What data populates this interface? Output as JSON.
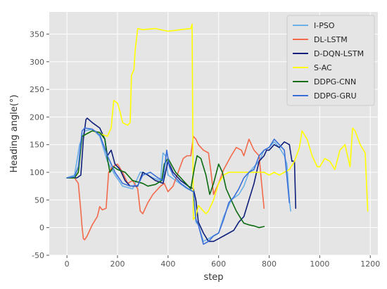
{
  "chart_data": {
    "type": "line",
    "title": "",
    "xlabel": "step",
    "ylabel": "Heading angle(°)",
    "xlim": [
      -70,
      1230
    ],
    "ylim": [
      -50,
      390
    ],
    "xticks": [
      0,
      200,
      400,
      600,
      800,
      1000,
      1200
    ],
    "yticks": [
      -50,
      0,
      50,
      100,
      150,
      200,
      250,
      300,
      350
    ],
    "grid": true,
    "legend_position": "top-right",
    "series": [
      {
        "name": "I-PSO",
        "color": "#6cb0e8",
        "x": [
          0,
          30,
          50,
          70,
          100,
          130,
          160,
          190,
          220,
          260,
          290,
          310,
          340,
          370,
          380,
          390,
          400,
          440,
          470,
          500,
          510,
          520,
          540,
          560,
          580,
          600,
          620,
          650,
          680,
          700,
          720,
          740,
          760,
          780,
          800,
          820,
          840,
          860,
          870,
          880,
          885
        ],
        "y": [
          90,
          95,
          150,
          175,
          178,
          165,
          120,
          95,
          75,
          70,
          100,
          98,
          90,
          85,
          135,
          130,
          95,
          82,
          72,
          65,
          10,
          5,
          -25,
          -20,
          -15,
          -10,
          20,
          50,
          60,
          75,
          100,
          110,
          120,
          140,
          145,
          155,
          145,
          130,
          115,
          50,
          30
        ]
      },
      {
        "name": "DL-LSTM",
        "color": "#f26a4b",
        "x": [
          0,
          30,
          45,
          55,
          60,
          65,
          70,
          80,
          100,
          120,
          130,
          140,
          155,
          165,
          180,
          200,
          220,
          240,
          260,
          280,
          290,
          300,
          320,
          340,
          370,
          385,
          400,
          420,
          440,
          460,
          475,
          490,
          500,
          510,
          520,
          540,
          560,
          570,
          580,
          600,
          620,
          650,
          670,
          690,
          700,
          720,
          740,
          760,
          770,
          780
        ],
        "y": [
          90,
          90,
          80,
          30,
          0,
          -20,
          -22,
          -15,
          5,
          20,
          38,
          32,
          35,
          100,
          110,
          115,
          100,
          80,
          85,
          70,
          30,
          25,
          45,
          60,
          75,
          80,
          65,
          75,
          100,
          125,
          130,
          130,
          165,
          160,
          150,
          140,
          135,
          100,
          60,
          80,
          105,
          130,
          145,
          140,
          130,
          160,
          140,
          130,
          80,
          35
        ]
      },
      {
        "name": "D-DQN-LSTM",
        "color": "#0d1f7a",
        "x": [
          0,
          40,
          55,
          65,
          75,
          80,
          100,
          130,
          150,
          160,
          175,
          190,
          210,
          230,
          250,
          280,
          300,
          320,
          350,
          380,
          400,
          420,
          450,
          480,
          500,
          510,
          520,
          540,
          560,
          580,
          600,
          620,
          640,
          660,
          680,
          700,
          720,
          740,
          760,
          780,
          790,
          800,
          820,
          840,
          860,
          880,
          890,
          900,
          905
        ],
        "y": [
          90,
          90,
          95,
          160,
          195,
          198,
          190,
          180,
          160,
          130,
          140,
          115,
          105,
          85,
          75,
          75,
          100,
          95,
          85,
          80,
          120,
          100,
          85,
          75,
          70,
          50,
          10,
          -10,
          -25,
          -25,
          -20,
          -15,
          -10,
          -5,
          10,
          20,
          50,
          80,
          120,
          130,
          140,
          140,
          150,
          145,
          155,
          150,
          120,
          120,
          35
        ]
      },
      {
        "name": "S-AC",
        "color": "#ffff00",
        "x": [
          0,
          30,
          45,
          60,
          80,
          100,
          130,
          160,
          175,
          185,
          200,
          210,
          220,
          240,
          250,
          255,
          260,
          265,
          270,
          280,
          300,
          350,
          400,
          450,
          490,
          495,
          500,
          510,
          520,
          540,
          550,
          560,
          580,
          600,
          620,
          640,
          660,
          680,
          700,
          720,
          740,
          760,
          780,
          800,
          820,
          840,
          860,
          880,
          900,
          920,
          930,
          950,
          970,
          990,
          1000,
          1020,
          1040,
          1060,
          1080,
          1100,
          1120,
          1130,
          1140,
          1160,
          1180,
          1190
        ],
        "y": [
          90,
          90,
          100,
          165,
          170,
          175,
          170,
          165,
          180,
          230,
          225,
          210,
          190,
          185,
          190,
          275,
          280,
          285,
          320,
          360,
          358,
          360,
          355,
          358,
          360,
          368,
          15,
          20,
          40,
          30,
          25,
          30,
          50,
          80,
          95,
          100,
          100,
          100,
          100,
          100,
          100,
          100,
          100,
          95,
          100,
          95,
          100,
          105,
          120,
          145,
          175,
          160,
          130,
          110,
          110,
          125,
          120,
          105,
          140,
          150,
          110,
          180,
          175,
          150,
          135,
          30
        ]
      },
      {
        "name": "DDPG-CNN",
        "color": "#0b6b11",
        "x": [
          0,
          30,
          45,
          60,
          80,
          100,
          130,
          150,
          160,
          170,
          185,
          200,
          230,
          260,
          300,
          320,
          350,
          375,
          385,
          400,
          430,
          460,
          490,
          505,
          515,
          530,
          550,
          565,
          580,
          600,
          615,
          630,
          650,
          670,
          690,
          700,
          720,
          740,
          760,
          780
        ],
        "y": [
          90,
          90,
          100,
          165,
          170,
          175,
          172,
          160,
          125,
          100,
          110,
          105,
          100,
          85,
          80,
          75,
          78,
          85,
          115,
          125,
          100,
          85,
          70,
          110,
          130,
          125,
          95,
          60,
          80,
          115,
          100,
          70,
          50,
          30,
          15,
          8,
          5,
          3,
          0,
          2
        ]
      },
      {
        "name": "DDPG-GRU",
        "color": "#3a6fd8",
        "x": [
          0,
          30,
          45,
          60,
          70,
          100,
          130,
          160,
          190,
          220,
          250,
          280,
          300,
          330,
          360,
          380,
          395,
          405,
          420,
          450,
          480,
          500,
          510,
          520,
          540,
          560,
          580,
          600,
          620,
          640,
          660,
          680,
          700,
          720,
          740,
          760,
          780,
          800,
          820,
          840,
          860,
          880
        ],
        "y": [
          90,
          92,
          110,
          175,
          180,
          178,
          168,
          130,
          100,
          80,
          75,
          76,
          95,
          100,
          90,
          85,
          140,
          110,
          95,
          80,
          70,
          65,
          15,
          5,
          -30,
          -25,
          -15,
          -10,
          15,
          45,
          55,
          70,
          90,
          100,
          105,
          130,
          140,
          145,
          160,
          150,
          140,
          45
        ]
      }
    ]
  }
}
